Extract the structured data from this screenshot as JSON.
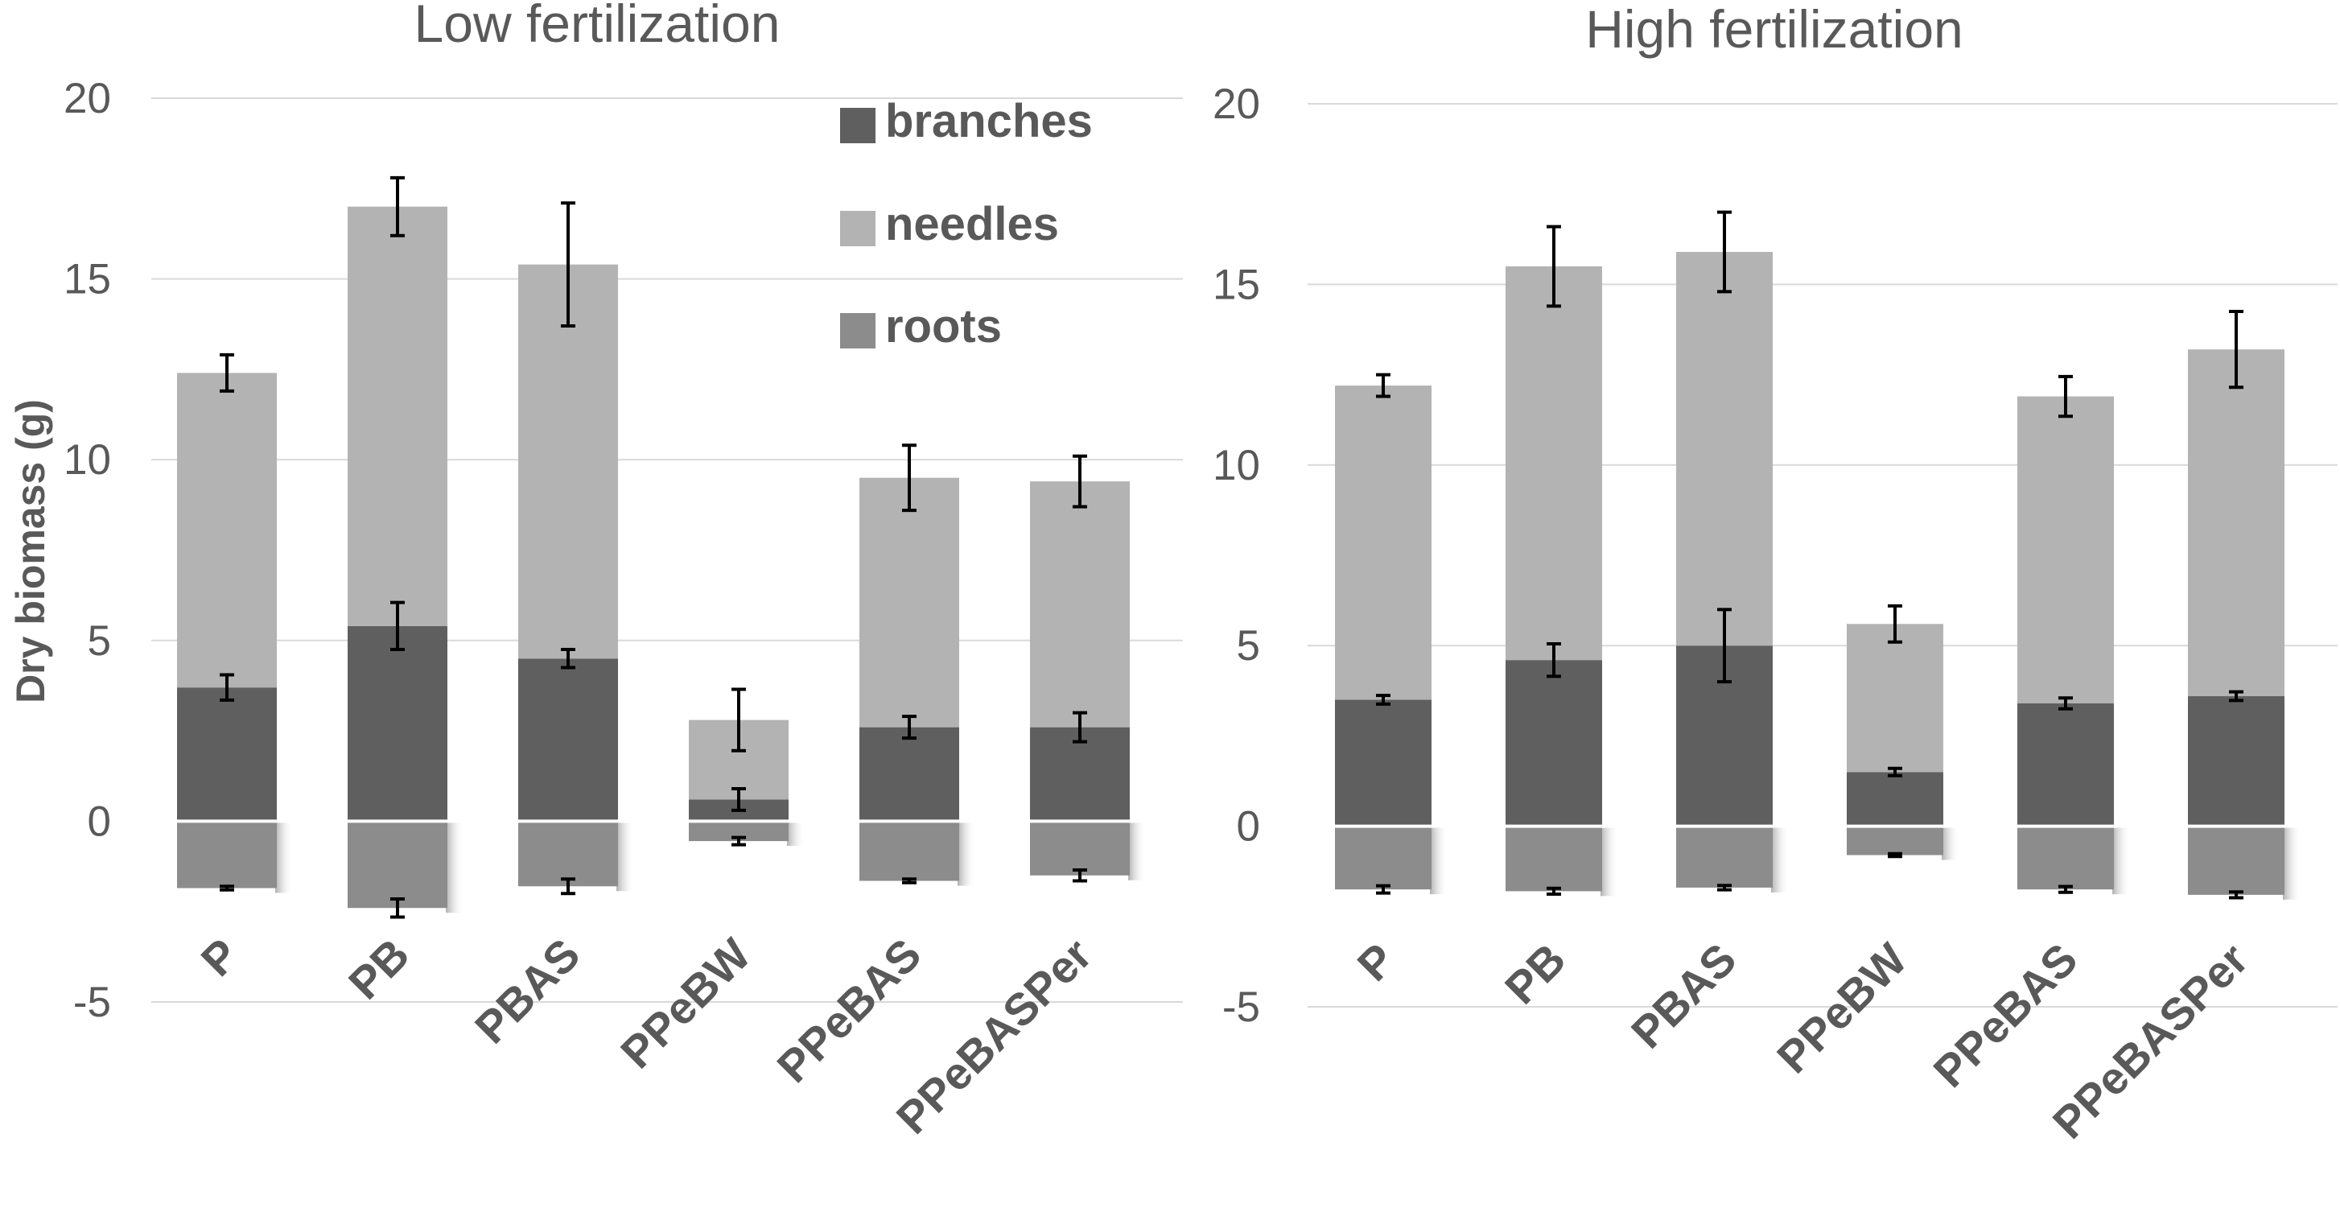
{
  "chart_data": {
    "type": "bar",
    "stacked": true,
    "ylabel": "Dry biomass (g)",
    "ylim": [
      -5,
      20
    ],
    "yticks": [
      -5,
      0,
      5,
      10,
      15,
      20
    ],
    "categories": [
      "P",
      "PB",
      "PBAS",
      "PPeBW",
      "PPeBAS",
      "PPeBASPer"
    ],
    "legend": {
      "position": "top-right",
      "entries": [
        {
          "name": "branches",
          "color": "#5f5f5f"
        },
        {
          "name": "needles",
          "color": "#b3b3b3"
        },
        {
          "name": "roots",
          "color": "#8c8c8c"
        }
      ]
    },
    "colors": {
      "branches": "#5f5f5f",
      "needles": "#b3b3b3",
      "roots": "#8c8c8c"
    },
    "panels": [
      {
        "title": "Low fertilization",
        "series": [
          {
            "name": "branches",
            "values": [
              3.7,
              5.4,
              4.5,
              0.6,
              2.6,
              2.6
            ],
            "errors": [
              0.35,
              0.65,
              0.25,
              0.3,
              0.3,
              0.4
            ]
          },
          {
            "name": "needles",
            "values": [
              8.7,
              11.6,
              10.9,
              2.2,
              6.9,
              6.8
            ],
            "errors": [
              0.5,
              0.8,
              1.7,
              0.85,
              0.9,
              0.7
            ]
          },
          {
            "name": "roots",
            "values": [
              -1.85,
              -2.4,
              -1.8,
              -0.55,
              -1.65,
              -1.5
            ],
            "errors": [
              0.05,
              0.25,
              0.2,
              0.1,
              0.05,
              0.15
            ]
          }
        ]
      },
      {
        "title": "High fertilization",
        "series": [
          {
            "name": "branches",
            "values": [
              3.5,
              4.6,
              5.0,
              1.5,
              3.4,
              3.6
            ],
            "errors": [
              0.12,
              0.45,
              1.0,
              0.1,
              0.15,
              0.12
            ]
          },
          {
            "name": "needles",
            "values": [
              8.7,
              10.9,
              10.9,
              4.1,
              8.5,
              9.6
            ],
            "errors": [
              0.3,
              1.1,
              1.1,
              0.5,
              0.55,
              1.05
            ]
          },
          {
            "name": "roots",
            "values": [
              -1.75,
              -1.8,
              -1.7,
              -0.8,
              -1.75,
              -1.9
            ],
            "errors": [
              0.1,
              0.08,
              0.06,
              0.04,
              0.08,
              0.08
            ]
          }
        ]
      }
    ]
  }
}
